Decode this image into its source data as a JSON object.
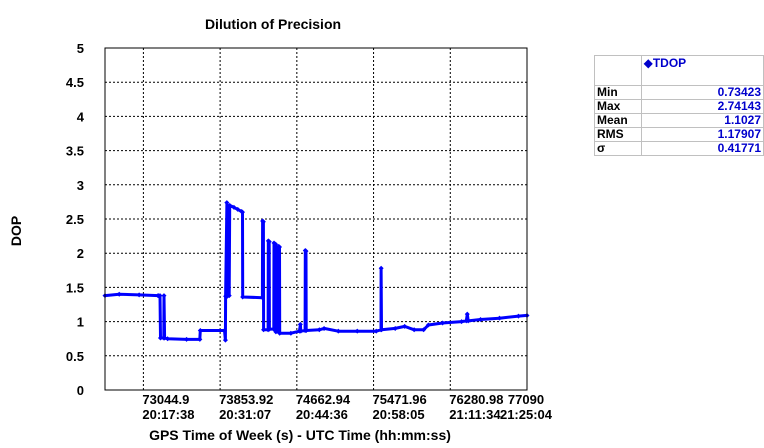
{
  "chart_data": {
    "type": "line",
    "title": "Dilution of Precision",
    "xlabel": "GPS Time of Week (s) - UTC Time (hh:mm:ss)",
    "ylabel": "DOP",
    "xlim": [
      72640,
      77090
    ],
    "ylim": [
      0,
      5
    ],
    "y_ticks": [
      "0",
      "0.5",
      "1",
      "1.5",
      "2",
      "2.5",
      "3",
      "3.5",
      "4",
      "4.5",
      "5"
    ],
    "x_ticks": [
      {
        "value": 73044.9,
        "gps": "73044.9",
        "utc": "20:17:38"
      },
      {
        "value": 73853.92,
        "gps": "73853.92",
        "utc": "20:31:07"
      },
      {
        "value": 74662.94,
        "gps": "74662.94",
        "utc": "20:44:36"
      },
      {
        "value": 75471.96,
        "gps": "75471.96",
        "utc": "20:58:05"
      },
      {
        "value": 76280.98,
        "gps": "76280.98",
        "utc": "21:11:34"
      },
      {
        "value": 77090,
        "gps": "77090",
        "utc": "21:25:04"
      }
    ],
    "grid": true,
    "series": [
      {
        "name": "TDOP",
        "color": "#0000ff",
        "points": [
          [
            72640,
            1.38
          ],
          [
            72790,
            1.4
          ],
          [
            73000,
            1.39
          ],
          [
            73200,
            1.38
          ],
          [
            73200,
            1.38
          ],
          [
            73220,
            1.38
          ],
          [
            73225,
            0.76
          ],
          [
            73260,
            0.76
          ],
          [
            73262,
            1.38
          ],
          [
            73268,
            0.76
          ],
          [
            73300,
            0.75
          ],
          [
            73500,
            0.74
          ],
          [
            73640,
            0.74
          ],
          [
            73645,
            0.87
          ],
          [
            73900,
            0.87
          ],
          [
            73910,
            0.73
          ],
          [
            73912,
            1.37
          ],
          [
            73925,
            2.74
          ],
          [
            73930,
            1.37
          ],
          [
            73950,
            1.38
          ],
          [
            73955,
            2.7
          ],
          [
            74000,
            2.67
          ],
          [
            74040,
            2.64
          ],
          [
            74080,
            2.61
          ],
          [
            74090,
            2.6
          ],
          [
            74092,
            1.36
          ],
          [
            74300,
            1.35
          ],
          [
            74302,
            2.47
          ],
          [
            74310,
            2.46
          ],
          [
            74312,
            0.88
          ],
          [
            74360,
            0.88
          ],
          [
            74362,
            2.18
          ],
          [
            74372,
            2.17
          ],
          [
            74374,
            0.89
          ],
          [
            74420,
            0.89
          ],
          [
            74422,
            2.15
          ],
          [
            74440,
            2.13
          ],
          [
            74442,
            0.85
          ],
          [
            74470,
            0.85
          ],
          [
            74472,
            2.1
          ],
          [
            74480,
            2.09
          ],
          [
            74482,
            0.83
          ],
          [
            74600,
            0.83
          ],
          [
            74690,
            0.86
          ],
          [
            74700,
            0.96
          ],
          [
            74705,
            0.86
          ],
          [
            74750,
            0.87
          ],
          [
            74752,
            2.04
          ],
          [
            74760,
            2.03
          ],
          [
            74762,
            0.87
          ],
          [
            74900,
            0.88
          ],
          [
            74950,
            0.9
          ],
          [
            75100,
            0.86
          ],
          [
            75300,
            0.86
          ],
          [
            75500,
            0.86
          ],
          [
            75550,
            0.88
          ],
          [
            75552,
            1.78
          ],
          [
            75556,
            0.88
          ],
          [
            75700,
            0.9
          ],
          [
            75800,
            0.93
          ],
          [
            75900,
            0.88
          ],
          [
            76000,
            0.88
          ],
          [
            76050,
            0.95
          ],
          [
            76200,
            0.98
          ],
          [
            76400,
            1.0
          ],
          [
            76450,
            1.01
          ],
          [
            76460,
            1.11
          ],
          [
            76470,
            1.01
          ],
          [
            76600,
            1.03
          ],
          [
            76800,
            1.05
          ],
          [
            77000,
            1.08
          ],
          [
            77090,
            1.09
          ]
        ]
      }
    ]
  },
  "stats_table": {
    "series_label": "TDOP",
    "rows": [
      {
        "label": "Min",
        "value": "0.73423"
      },
      {
        "label": "Max",
        "value": "2.74143"
      },
      {
        "label": "Mean",
        "value": "1.1027"
      },
      {
        "label": "RMS",
        "value": "1.17907"
      },
      {
        "label": "σ",
        "value": "0.41771"
      }
    ]
  }
}
